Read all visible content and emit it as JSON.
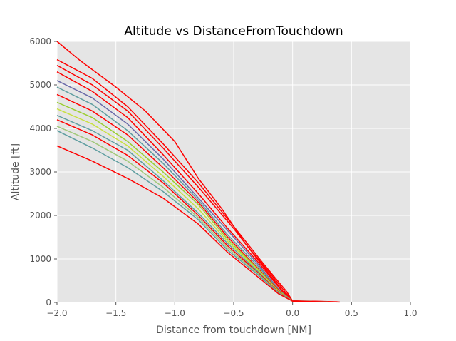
{
  "chart_data": {
    "type": "line",
    "title": "Altitude vs DistanceFromTouchdown",
    "xlabel": "Distance from touchdown [NM]",
    "ylabel": "Altitude [ft]",
    "xlim": [
      -2.0,
      1.0
    ],
    "ylim": [
      0,
      6000
    ],
    "x_ticks": [
      -2.0,
      -1.5,
      -1.0,
      -0.5,
      0.0,
      0.5,
      1.0
    ],
    "x_tick_labels": [
      "−2.0",
      "−1.5",
      "−1.0",
      "−0.5",
      "0.0",
      "0.5",
      "1.0"
    ],
    "y_ticks": [
      0,
      1000,
      2000,
      3000,
      4000,
      5000,
      6000
    ],
    "y_tick_labels": [
      "0",
      "1000",
      "2000",
      "3000",
      "4000",
      "5000",
      "6000"
    ],
    "grid": true,
    "background": "#e5e5e5",
    "grid_color": "#ffffff",
    "series_colors": [
      "#ff0000",
      "#5f9ea0",
      "#9acd32",
      "#6a6aa8",
      "#a0c878",
      "#c8e040"
    ],
    "series": [
      {
        "color": "#ff0000",
        "x": [
          -2.0,
          -1.8,
          -1.5,
          -1.25,
          -1.0,
          -0.8,
          -0.6,
          -0.4,
          -0.2,
          0.0,
          0.2,
          0.38
        ],
        "y": [
          6050,
          5550,
          4950,
          4400,
          3700,
          2850,
          2150,
          1350,
          700,
          30,
          25,
          15
        ]
      },
      {
        "color": "#ff0000",
        "x": [
          -2.0,
          -1.7,
          -1.4,
          -1.1,
          -0.8,
          -0.5,
          -0.25,
          -0.05,
          0.0,
          0.2,
          0.4
        ],
        "y": [
          5580,
          5150,
          4500,
          3650,
          2750,
          1750,
          900,
          250,
          30,
          20,
          10
        ]
      },
      {
        "color": "#ff0000",
        "x": [
          -2.0,
          -1.7,
          -1.4,
          -1.1,
          -0.8,
          -0.5,
          -0.3,
          -0.08,
          0.0,
          0.3
        ],
        "y": [
          5450,
          5000,
          4400,
          3550,
          2650,
          1700,
          1000,
          250,
          40,
          20
        ]
      },
      {
        "color": "#ff0000",
        "x": [
          -2.0,
          -1.7,
          -1.4,
          -1.1,
          -0.8,
          -0.55,
          -0.3,
          -0.08,
          0.0,
          0.3
        ],
        "y": [
          5300,
          4850,
          4250,
          3400,
          2500,
          1700,
          950,
          230,
          30,
          15
        ]
      },
      {
        "color": "#6a6aa8",
        "x": [
          -2.0,
          -1.7,
          -1.4,
          -1.1,
          -0.8,
          -0.55,
          -0.3,
          -0.1,
          0.0,
          0.3
        ],
        "y": [
          5100,
          4700,
          4100,
          3300,
          2400,
          1650,
          900,
          250,
          30,
          15
        ]
      },
      {
        "color": "#5f9ea0",
        "x": [
          -2.0,
          -1.7,
          -1.4,
          -1.1,
          -0.8,
          -0.55,
          -0.3,
          -0.1,
          0.0,
          0.3
        ],
        "y": [
          4950,
          4550,
          3950,
          3200,
          2350,
          1550,
          850,
          250,
          30,
          15
        ]
      },
      {
        "color": "#ff0000",
        "x": [
          -2.0,
          -1.7,
          -1.4,
          -1.1,
          -0.8,
          -0.55,
          -0.3,
          -0.1,
          0.0,
          0.3
        ],
        "y": [
          4780,
          4400,
          3850,
          3100,
          2300,
          1500,
          800,
          230,
          30,
          15
        ]
      },
      {
        "color": "#9acd32",
        "x": [
          -2.0,
          -1.7,
          -1.4,
          -1.1,
          -0.8,
          -0.55,
          -0.3,
          -0.12,
          0.0,
          0.3
        ],
        "y": [
          4600,
          4250,
          3700,
          3000,
          2250,
          1450,
          780,
          270,
          30,
          15
        ]
      },
      {
        "color": "#c8e040",
        "x": [
          -2.0,
          -1.7,
          -1.4,
          -1.1,
          -0.8,
          -0.55,
          -0.3,
          -0.12,
          0.0,
          0.3
        ],
        "y": [
          4450,
          4100,
          3600,
          2900,
          2150,
          1400,
          760,
          250,
          30,
          15
        ]
      },
      {
        "color": "#5f9ea0",
        "x": [
          -2.0,
          -1.7,
          -1.4,
          -1.1,
          -0.8,
          -0.55,
          -0.3,
          -0.12,
          0.0,
          0.3
        ],
        "y": [
          4300,
          3950,
          3500,
          2800,
          2050,
          1350,
          730,
          240,
          30,
          15
        ]
      },
      {
        "color": "#ff0000",
        "x": [
          -2.0,
          -1.7,
          -1.4,
          -1.1,
          -0.8,
          -0.55,
          -0.3,
          -0.12,
          0.0,
          0.3
        ],
        "y": [
          4200,
          3850,
          3380,
          2750,
          2000,
          1300,
          700,
          240,
          30,
          15
        ]
      },
      {
        "color": "#a0c878",
        "x": [
          -2.0,
          -1.7,
          -1.4,
          -1.1,
          -0.8,
          -0.55,
          -0.3,
          -0.12,
          0.0,
          0.3
        ],
        "y": [
          4050,
          3700,
          3250,
          2650,
          1950,
          1250,
          680,
          230,
          30,
          15
        ]
      },
      {
        "color": "#5f9ea0",
        "x": [
          -2.0,
          -1.7,
          -1.4,
          -1.1,
          -0.8,
          -0.55,
          -0.3,
          -0.12,
          0.0,
          0.3
        ],
        "y": [
          3950,
          3550,
          3100,
          2550,
          1900,
          1200,
          650,
          220,
          30,
          15
        ]
      },
      {
        "color": "#ff0000",
        "x": [
          -2.0,
          -1.7,
          -1.4,
          -1.1,
          -0.8,
          -0.55,
          -0.3,
          -0.12,
          0.0,
          0.3
        ],
        "y": [
          3600,
          3250,
          2850,
          2400,
          1800,
          1150,
          600,
          200,
          30,
          15
        ]
      }
    ]
  }
}
